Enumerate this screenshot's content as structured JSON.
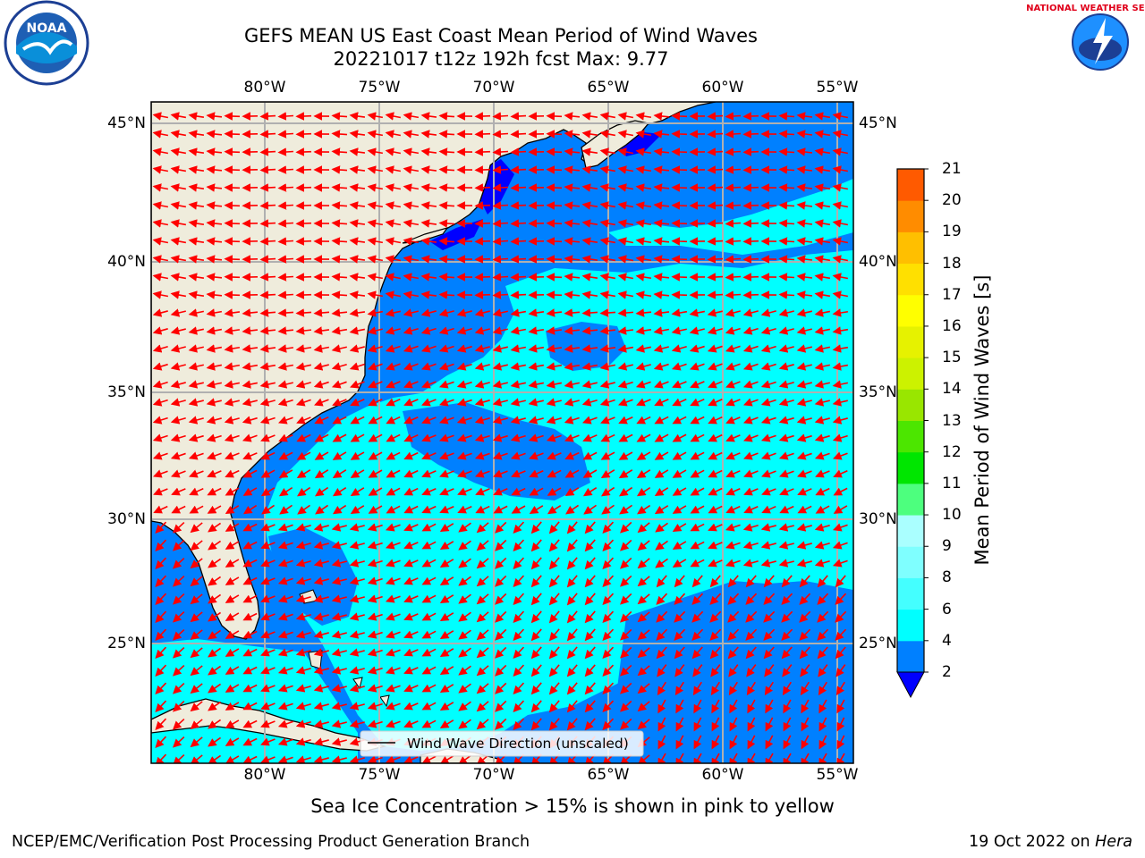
{
  "title": "GEFS MEAN US East Coast Mean Period of Wind Waves",
  "subtitle": "20221017 t12z 192h fcst   Max: 9.77",
  "logos": {
    "left": "noaa-logo",
    "right": "nws-logo",
    "left_text": "NOAA",
    "right_text": "NATIONAL WEATHER SERVICE"
  },
  "map": {
    "lon_labels": [
      "80°W",
      "75°W",
      "70°W",
      "65°W",
      "60°W",
      "55°W"
    ],
    "lat_labels": [
      "45°N",
      "40°N",
      "35°N",
      "30°N",
      "25°N"
    ],
    "lon_range": [
      -85,
      -54.3
    ],
    "lat_range": [
      20.5,
      45.9
    ],
    "land_color": "#efecdc",
    "ocean_colors": {
      "2-4": "#0080ff",
      "4-6": "#00ffff",
      "under-2": "#0000ff"
    },
    "arrow_color": "#ff0000",
    "legend_label": "Wind Wave Direction (unscaled)"
  },
  "colorbar": {
    "title": "Mean Period of Wind Waves [s]",
    "ticks": [
      "2",
      "4",
      "6",
      "8",
      "9",
      "10",
      "11",
      "12",
      "13",
      "14",
      "15",
      "16",
      "17",
      "18",
      "19",
      "20",
      "21"
    ],
    "colors": [
      "#0080ff",
      "#00ffff",
      "#44ffff",
      "#7fffff",
      "#aaffff",
      "#4dff7e",
      "#00e600",
      "#4ce600",
      "#99e600",
      "#ccf200",
      "#e6f200",
      "#ffff00",
      "#ffe000",
      "#ffbf00",
      "#ff8c00",
      "#ff5a00",
      "#ff2a00",
      "#ff0000"
    ],
    "under_color": "#0000ff"
  },
  "note": "Sea Ice Concentration > 15% is shown in pink to yellow",
  "footer": {
    "left": "NCEP/EMC/Verification Post Processing Product Generation Branch",
    "right_date": "19 Oct 2022 on ",
    "right_host": "Hera"
  }
}
